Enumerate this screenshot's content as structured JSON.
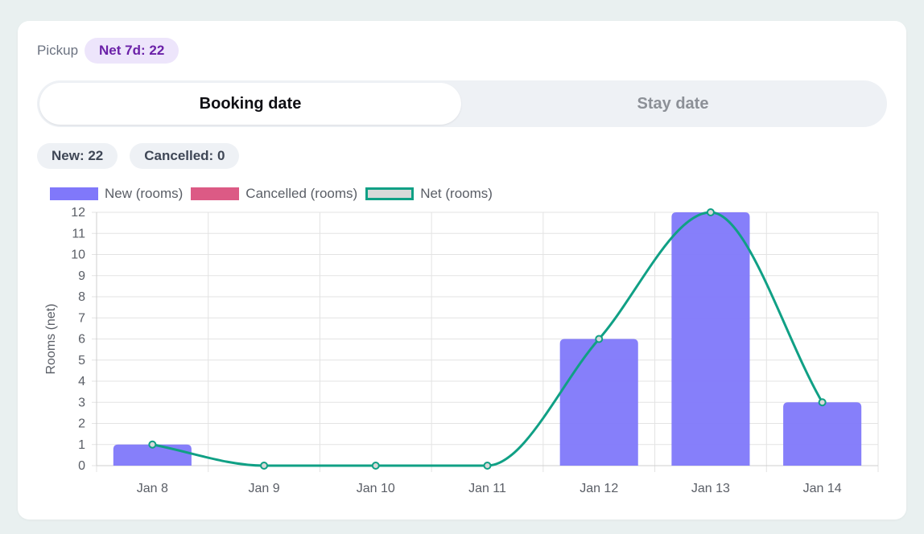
{
  "header": {
    "label": "Pickup",
    "net_badge": "Net 7d: 22"
  },
  "tabs": [
    {
      "label": "Booking date",
      "active": true
    },
    {
      "label": "Stay date",
      "active": false
    }
  ],
  "summary": {
    "new_label": "New: 22",
    "cancelled_label": "Cancelled: 0"
  },
  "colors": {
    "new": "#8078fa",
    "cancelled": "#dc5a85",
    "net": "#10a085",
    "net_fill": "#d9d9d9",
    "badge_bg": "#ede5fb",
    "badge_text": "#6b21a8"
  },
  "chart_data": {
    "type": "bar",
    "categories": [
      "Jan 8",
      "Jan 9",
      "Jan 10",
      "Jan 11",
      "Jan 12",
      "Jan 13",
      "Jan 14"
    ],
    "series": [
      {
        "name": "New (rooms)",
        "type": "bar",
        "values": [
          1,
          0,
          0,
          0,
          6,
          12,
          3
        ]
      },
      {
        "name": "Cancelled (rooms)",
        "type": "bar",
        "values": [
          0,
          0,
          0,
          0,
          0,
          0,
          0
        ]
      },
      {
        "name": "Net (rooms)",
        "type": "line",
        "values": [
          1,
          0,
          0,
          0,
          6,
          12,
          3
        ]
      }
    ],
    "ylabel": "Rooms (net)",
    "ylim": [
      0,
      12
    ],
    "yticks": [
      0,
      1,
      2,
      3,
      4,
      5,
      6,
      7,
      8,
      9,
      10,
      11,
      12
    ],
    "grid": true,
    "legend": "top-left"
  }
}
